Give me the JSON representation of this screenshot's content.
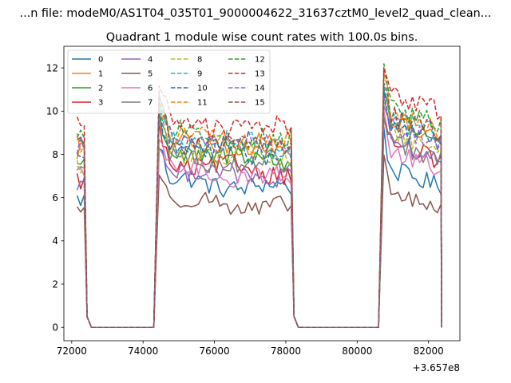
{
  "chart_data": {
    "type": "line",
    "suptitle": "...n file: modeM0/AS1T04_035T01_9000004622_31637cztM0_level2_quad_clean...",
    "title": "Quadrant 1 module wise count rates with 100.0s bins.",
    "xlabel": "",
    "ylabel": "",
    "x_offset_label": "+3.657e8",
    "xlim": [
      71780,
      82880
    ],
    "ylim": [
      -0.62,
      13.0
    ],
    "xticks": [
      72000,
      74000,
      76000,
      78000,
      80000,
      82000
    ],
    "xtick_labels": [
      "72000",
      "74000",
      "76000",
      "78000",
      "80000",
      "82000"
    ],
    "yticks": [
      0,
      2,
      4,
      6,
      8,
      10,
      12
    ],
    "ytick_labels": [
      "0",
      "2",
      "4",
      "6",
      "8",
      "10",
      "12"
    ],
    "legend_placement": "top-left",
    "series": [
      {
        "name": "0",
        "color": "#1f77b4",
        "dash": "solid",
        "base1": 5.9,
        "base2": 6.8,
        "base3": 7.4,
        "amp": 0.45
      },
      {
        "name": "1",
        "color": "#ff7f0e",
        "dash": "solid",
        "base1": 8.2,
        "base2": 8.6,
        "base3": 9.6,
        "amp": 0.5
      },
      {
        "name": "2",
        "color": "#2ca02c",
        "dash": "solid",
        "base1": 7.6,
        "base2": 8.1,
        "base3": 9.7,
        "amp": 0.5
      },
      {
        "name": "3",
        "color": "#d62728",
        "dash": "solid",
        "base1": 6.8,
        "base2": 7.6,
        "base3": 8.6,
        "amp": 0.45
      },
      {
        "name": "4",
        "color": "#9467bd",
        "dash": "solid",
        "base1": 6.6,
        "base2": 7.3,
        "base3": 8.7,
        "amp": 0.45
      },
      {
        "name": "5",
        "color": "#8c564b",
        "dash": "solid",
        "base1": 5.5,
        "base2": 5.9,
        "base3": 6.3,
        "amp": 0.4
      },
      {
        "name": "6",
        "color": "#e377c2",
        "dash": "solid",
        "base1": 7.0,
        "base2": 7.3,
        "base3": 8.2,
        "amp": 0.45
      },
      {
        "name": "7",
        "color": "#7f7f7f",
        "dash": "solid",
        "base1": 7.4,
        "base2": 7.9,
        "base3": 8.6,
        "amp": 0.45
      },
      {
        "name": "8",
        "color": "#bcbd22",
        "dash": "dashed",
        "base1": 7.5,
        "base2": 8.2,
        "base3": 9.2,
        "amp": 0.5
      },
      {
        "name": "9",
        "color": "#17becf",
        "dash": "dashed",
        "base1": 8.4,
        "base2": 8.8,
        "base3": 9.8,
        "amp": 0.5
      },
      {
        "name": "10",
        "color": "#1f77b4",
        "dash": "dashed",
        "base1": 8.0,
        "base2": 8.4,
        "base3": 9.4,
        "amp": 0.5
      },
      {
        "name": "11",
        "color": "#ff7f0e",
        "dash": "dashed",
        "base1": 8.6,
        "base2": 8.9,
        "base3": 10.0,
        "amp": 0.5
      },
      {
        "name": "12",
        "color": "#2ca02c",
        "dash": "dashed",
        "base1": 9.0,
        "base2": 9.0,
        "base3": 10.3,
        "amp": 0.5
      },
      {
        "name": "13",
        "color": "#d62728",
        "dash": "dashed",
        "base1": 9.6,
        "base2": 9.5,
        "base3": 10.9,
        "amp": 0.5
      },
      {
        "name": "14",
        "color": "#9467bd",
        "dash": "dashed",
        "base1": 8.5,
        "base2": 8.7,
        "base3": 9.5,
        "amp": 0.5
      },
      {
        "name": "15",
        "color": "#8c564b",
        "dash": "dashed",
        "base1": 8.8,
        "base2": 8.7,
        "base3": 9.9,
        "amp": 0.5
      }
    ],
    "segments": [
      {
        "start": 72150,
        "end": 72350,
        "level": "base1"
      },
      {
        "start": 74450,
        "end": 78150,
        "level": "base2"
      },
      {
        "start": 80750,
        "end": 82350,
        "level": "base3"
      }
    ],
    "bin_seconds": 100
  }
}
